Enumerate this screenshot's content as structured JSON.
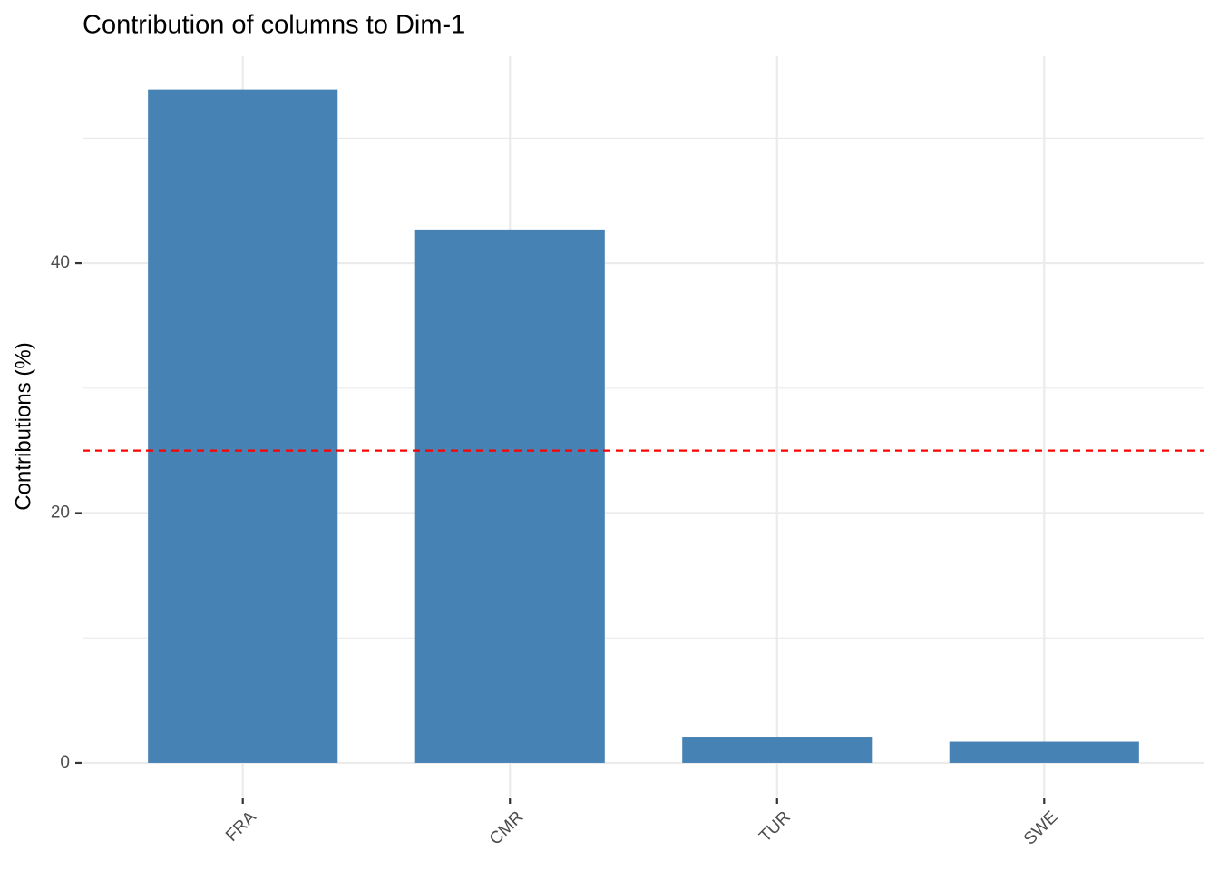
{
  "chart_data": {
    "type": "bar",
    "title": "Contribution of columns to Dim-1",
    "y_label": "Contributions (%)",
    "categories": [
      "FRA",
      "CMR",
      "TUR",
      "SWE"
    ],
    "values": [
      53.9,
      42.7,
      2.1,
      1.7
    ],
    "color": "#4682b4",
    "ylim": [
      -2.69,
      56.56
    ],
    "yticks": [
      0,
      20,
      40
    ],
    "y_minor_grid": [
      10,
      30,
      50
    ],
    "grid": true,
    "reference_line": 25,
    "reference_line_color": "#ff0000"
  }
}
